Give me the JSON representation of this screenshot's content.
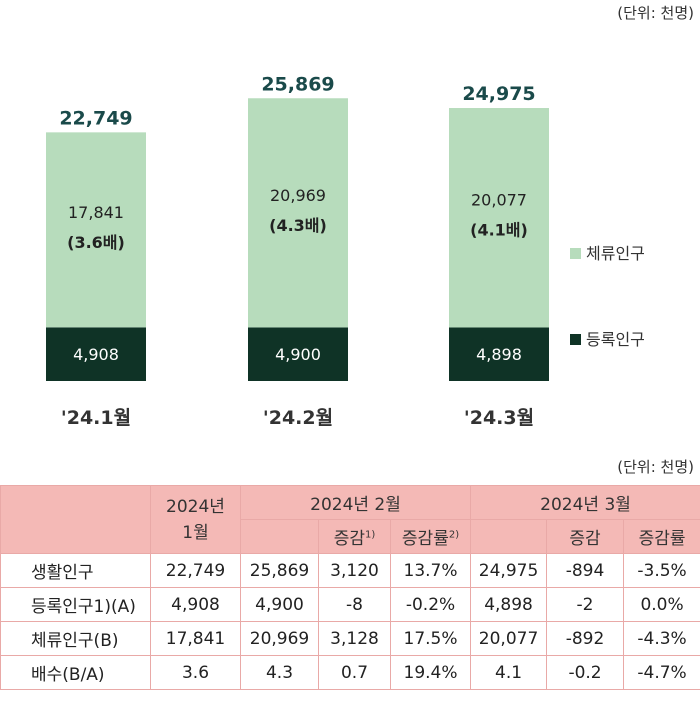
{
  "unit_label": "(단위: 천명)",
  "chart_data": {
    "type": "bar",
    "stacked": true,
    "categories": [
      "'24.1월",
      "'24.2월",
      "'24.3월"
    ],
    "series": [
      {
        "name": "등록인구",
        "values": [
          4908,
          4900,
          4898
        ],
        "color": "#0f3326"
      },
      {
        "name": "체류인구",
        "values": [
          17841,
          20969,
          20077
        ],
        "color": "#b7dcbc"
      }
    ],
    "value_labels": {
      "등록인구": [
        "4,908",
        "4,900",
        "4,898"
      ],
      "체류인구": [
        "17,841",
        "20,969",
        "20,077"
      ]
    },
    "multiples": [
      "(3.6배)",
      "(4.3배)",
      "(4.1배)"
    ],
    "totals": [
      22749,
      25869,
      24975
    ],
    "total_labels": [
      "22,749",
      "25,869",
      "24,975"
    ],
    "ylim": [
      0,
      30000
    ],
    "legend_position": "right"
  },
  "table": {
    "unit_label": "(단위: 천명)",
    "header": {
      "col_jan": "2024년\n1월",
      "group_feb": "2024년 2월",
      "group_mar": "2024년 3월",
      "change": "증감",
      "change_rate": "증감률",
      "note1": "1)",
      "note2": "2)"
    },
    "rows": [
      {
        "label": "생활인구",
        "cells": [
          "22,749",
          "25,869",
          "3,120",
          "13.7%",
          "24,975",
          "-894",
          "-3.5%"
        ]
      },
      {
        "label": "등록인구1)(A)",
        "cells": [
          "4,908",
          "4,900",
          "-8",
          "-0.2%",
          "4,898",
          "-2",
          "0.0%"
        ]
      },
      {
        "label": "체류인구(B)",
        "cells": [
          "17,841",
          "20,969",
          "3,128",
          "17.5%",
          "20,077",
          "-892",
          "-4.3%"
        ]
      },
      {
        "label": "배수(B/A)",
        "cells": [
          "3.6",
          "4.3",
          "0.7",
          "19.4%",
          "4.1",
          "-0.2",
          "-4.7%"
        ]
      }
    ]
  }
}
